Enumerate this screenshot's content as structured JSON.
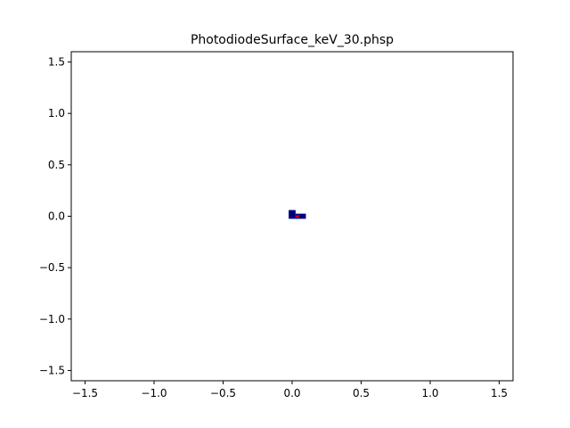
{
  "chart_data": {
    "type": "heatmap",
    "title": "PhotodiodeSurface_keV_30.phsp",
    "xlabel": "",
    "ylabel": "",
    "xlim": [
      -1.6,
      1.6
    ],
    "ylim": [
      -1.6,
      1.6
    ],
    "x_ticks": [
      -1.5,
      -1.0,
      -0.5,
      0.0,
      0.5,
      1.0,
      1.5
    ],
    "x_tick_labels": [
      "−1.5",
      "−1.0",
      "−0.5",
      "0.0",
      "0.5",
      "1.0",
      "1.5"
    ],
    "y_ticks": [
      -1.5,
      -1.0,
      -0.5,
      0.0,
      0.5,
      1.0,
      1.5
    ],
    "y_tick_labels": [
      "−1.5",
      "−1.0",
      "−0.5",
      "0.0",
      "0.5",
      "1.0",
      "1.5"
    ],
    "grid": false,
    "colormap": "jet",
    "background_color": "#ffffff",
    "cells": [
      {
        "x0": -0.025,
        "x1": 0.025,
        "y0": 0.0,
        "y1": 0.06,
        "color": "#00007f"
      },
      {
        "x0": -0.025,
        "x1": 0.025,
        "y0": -0.025,
        "y1": 0.0,
        "color": "#00007f"
      },
      {
        "x0": 0.025,
        "x1": 0.05,
        "y0": -0.025,
        "y1": 0.025,
        "color": "#00007f"
      },
      {
        "x0": 0.025,
        "x1": 0.05,
        "y0": -0.012,
        "y1": 0.008,
        "color": "#d40000"
      },
      {
        "x0": 0.05,
        "x1": 0.1,
        "y0": -0.025,
        "y1": 0.025,
        "color": "#00007f"
      }
    ]
  }
}
